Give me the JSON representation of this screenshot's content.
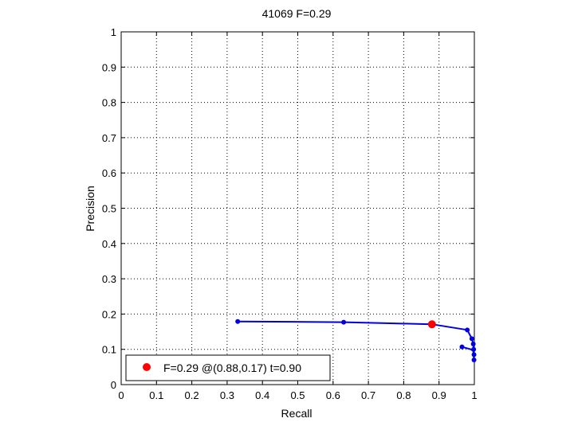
{
  "chart_data": {
    "type": "line",
    "title": "41069 F=0.29",
    "xlabel": "Recall",
    "ylabel": "Precision",
    "xlim": [
      0,
      1
    ],
    "ylim": [
      0,
      1
    ],
    "xticks": [
      "0",
      "0.1",
      "0.2",
      "0.3",
      "0.4",
      "0.5",
      "0.6",
      "0.7",
      "0.8",
      "0.9",
      "1"
    ],
    "yticks": [
      "0",
      "0.1",
      "0.2",
      "0.3",
      "0.4",
      "0.5",
      "0.6",
      "0.7",
      "0.8",
      "0.9",
      "1"
    ],
    "grid": true,
    "legend_position": "bottom-left",
    "colors": {
      "curve": "#0000e0",
      "best": "#ff0000",
      "grid": "#000000"
    },
    "series": [
      {
        "points": [
          [
            0.33,
            0.179
          ],
          [
            0.49,
            0.178
          ],
          [
            0.63,
            0.177
          ],
          [
            0.75,
            0.174
          ],
          [
            0.88,
            0.171
          ],
          [
            0.98,
            0.155
          ],
          [
            0.993,
            0.13
          ],
          [
            0.997,
            0.115
          ],
          [
            0.998,
            0.1
          ],
          [
            0.999,
            0.085
          ],
          [
            0.999,
            0.07
          ],
          [
            0.998,
            0.085
          ],
          [
            0.997,
            0.095
          ],
          [
            0.99,
            0.1
          ],
          [
            0.965,
            0.107
          ]
        ],
        "markers": [
          [
            0.33,
            0.179
          ],
          [
            0.63,
            0.177
          ],
          [
            0.98,
            0.155
          ],
          [
            0.993,
            0.13
          ],
          [
            0.997,
            0.115
          ],
          [
            0.998,
            0.1
          ],
          [
            0.999,
            0.085
          ],
          [
            0.999,
            0.07
          ],
          [
            0.965,
            0.107
          ]
        ]
      }
    ],
    "best_point": {
      "x": 0.88,
      "y": 0.171
    },
    "legend": {
      "label": "F=0.29 @(0.88,0.17) t=0.90"
    }
  }
}
